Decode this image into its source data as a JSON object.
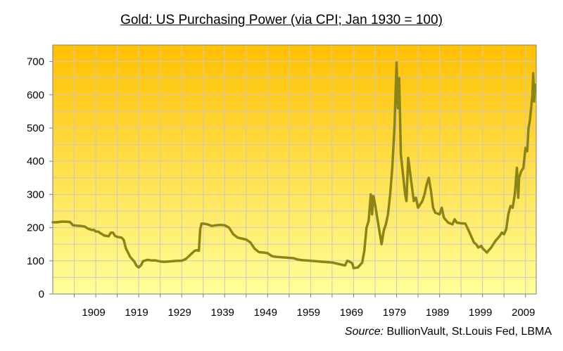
{
  "chart_data": {
    "type": "line",
    "title": "Gold: US Purchasing Power (via CPI; Jan 1930 = 100)",
    "xlabel": "",
    "ylabel": "",
    "x_tick_labels": [
      "1909",
      "1919",
      "1929",
      "1939",
      "1949",
      "1959",
      "1969",
      "1979",
      "1989",
      "1999",
      "2009"
    ],
    "y_tick_labels": [
      "0",
      "100",
      "200",
      "300",
      "400",
      "500",
      "600",
      "700"
    ],
    "xlim": [
      1900,
      2012.5
    ],
    "ylim": [
      0,
      750
    ],
    "grid": true,
    "legend": "none",
    "colors": {
      "line": "#8c8416",
      "grid": "#c8c8c8",
      "bg_top": "#ffc000",
      "bg_bottom": "#ffff99"
    },
    "series": [
      {
        "values": [
          [
            1900,
            216
          ],
          [
            1901,
            216
          ],
          [
            1902,
            218
          ],
          [
            1903,
            218
          ],
          [
            1904,
            217
          ],
          [
            1904.7,
            207
          ],
          [
            1905.5,
            206
          ],
          [
            1906.5,
            205
          ],
          [
            1907.5,
            203
          ],
          [
            1908,
            198
          ],
          [
            1909,
            193
          ],
          [
            1909.6,
            193
          ],
          [
            1910,
            188
          ],
          [
            1910.6,
            188
          ],
          [
            1911,
            184
          ],
          [
            1912,
            176
          ],
          [
            1913,
            174
          ],
          [
            1913.5,
            185
          ],
          [
            1914,
            185
          ],
          [
            1914.5,
            175
          ],
          [
            1915,
            172
          ],
          [
            1916,
            170
          ],
          [
            1916.5,
            163
          ],
          [
            1917,
            138
          ],
          [
            1918,
            112
          ],
          [
            1919,
            97
          ],
          [
            1919.5,
            85
          ],
          [
            1920,
            80
          ],
          [
            1920.6,
            88
          ],
          [
            1921,
            99
          ],
          [
            1922,
            103
          ],
          [
            1923,
            101
          ],
          [
            1924,
            101
          ],
          [
            1925,
            98
          ],
          [
            1926,
            97
          ],
          [
            1927,
            98
          ],
          [
            1928,
            99
          ],
          [
            1929,
            100
          ],
          [
            1930,
            100
          ],
          [
            1931,
            106
          ],
          [
            1932,
            118
          ],
          [
            1933,
            130
          ],
          [
            1933.5,
            132
          ],
          [
            1934,
            130
          ],
          [
            1934.3,
            195
          ],
          [
            1934.6,
            212
          ],
          [
            1935,
            212
          ],
          [
            1936,
            210
          ],
          [
            1937,
            205
          ],
          [
            1938,
            207
          ],
          [
            1939,
            208
          ],
          [
            1940,
            207
          ],
          [
            1941,
            200
          ],
          [
            1942,
            180
          ],
          [
            1943,
            170
          ],
          [
            1944,
            167
          ],
          [
            1945,
            164
          ],
          [
            1946,
            155
          ],
          [
            1947,
            136
          ],
          [
            1948,
            126
          ],
          [
            1949,
            125
          ],
          [
            1950,
            123
          ],
          [
            1951,
            114
          ],
          [
            1952,
            112
          ],
          [
            1953,
            111
          ],
          [
            1954,
            110
          ],
          [
            1955,
            109
          ],
          [
            1956,
            108
          ],
          [
            1957,
            104
          ],
          [
            1958,
            102
          ],
          [
            1959,
            101
          ],
          [
            1960,
            100
          ],
          [
            1961,
            99
          ],
          [
            1962,
            98
          ],
          [
            1963,
            97
          ],
          [
            1964,
            96
          ],
          [
            1965,
            95
          ],
          [
            1966,
            92
          ],
          [
            1967,
            89
          ],
          [
            1968,
            86
          ],
          [
            1968.5,
            100
          ],
          [
            1969,
            98
          ],
          [
            1969.7,
            92
          ],
          [
            1970,
            78
          ],
          [
            1971,
            80
          ],
          [
            1972,
            95
          ],
          [
            1972.5,
            130
          ],
          [
            1973,
            200
          ],
          [
            1973.5,
            220
          ],
          [
            1974,
            300
          ],
          [
            1974.3,
            240
          ],
          [
            1974.6,
            295
          ],
          [
            1975,
            270
          ],
          [
            1976,
            190
          ],
          [
            1976.5,
            150
          ],
          [
            1977,
            190
          ],
          [
            1977.5,
            210
          ],
          [
            1978,
            240
          ],
          [
            1978.5,
            300
          ],
          [
            1979,
            380
          ],
          [
            1979.5,
            500
          ],
          [
            1980,
            697
          ],
          [
            1980.3,
            560
          ],
          [
            1980.6,
            650
          ],
          [
            1980.9,
            480
          ],
          [
            1981,
            420
          ],
          [
            1981.5,
            360
          ],
          [
            1982,
            300
          ],
          [
            1982.3,
            280
          ],
          [
            1982.7,
            410
          ],
          [
            1983,
            380
          ],
          [
            1983.5,
            330
          ],
          [
            1984,
            280
          ],
          [
            1984.5,
            290
          ],
          [
            1985,
            260
          ],
          [
            1986,
            280
          ],
          [
            1986.5,
            300
          ],
          [
            1987,
            330
          ],
          [
            1987.5,
            350
          ],
          [
            1988,
            310
          ],
          [
            1988.5,
            260
          ],
          [
            1989,
            245
          ],
          [
            1990,
            240
          ],
          [
            1990.5,
            260
          ],
          [
            1991,
            230
          ],
          [
            1992,
            215
          ],
          [
            1993,
            210
          ],
          [
            1993.5,
            225
          ],
          [
            1994,
            215
          ],
          [
            1995,
            213
          ],
          [
            1996,
            212
          ],
          [
            1997,
            185
          ],
          [
            1997.5,
            170
          ],
          [
            1998,
            155
          ],
          [
            1998.5,
            150
          ],
          [
            1999,
            140
          ],
          [
            1999.7,
            145
          ],
          [
            2000,
            138
          ],
          [
            2001,
            125
          ],
          [
            2002,
            140
          ],
          [
            2003,
            160
          ],
          [
            2004,
            175
          ],
          [
            2004.5,
            185
          ],
          [
            2005,
            180
          ],
          [
            2005.5,
            195
          ],
          [
            2006,
            240
          ],
          [
            2006.5,
            265
          ],
          [
            2007,
            260
          ],
          [
            2007.5,
            300
          ],
          [
            2008,
            380
          ],
          [
            2008.3,
            290
          ],
          [
            2008.5,
            350
          ],
          [
            2009,
            370
          ],
          [
            2009.5,
            380
          ],
          [
            2010,
            440
          ],
          [
            2010.4,
            430
          ],
          [
            2010.7,
            500
          ],
          [
            2011,
            520
          ],
          [
            2011.3,
            560
          ],
          [
            2011.6,
            600
          ],
          [
            2011.8,
            665
          ],
          [
            2012,
            580
          ],
          [
            2012.2,
            630
          ]
        ]
      }
    ]
  },
  "source": {
    "label": "Source:",
    "text": " BullionVault, St.Louis Fed, LBMA"
  }
}
